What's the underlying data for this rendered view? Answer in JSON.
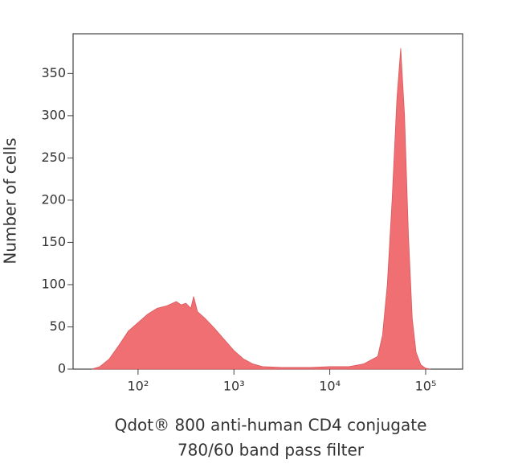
{
  "chart_data": {
    "type": "area",
    "y_label": "Number of cells",
    "x_label": [
      "Qdot® 800 anti-human CD4 conjugate",
      "780/60 band pass filter"
    ],
    "xscale": "log",
    "xlim": [
      21,
      243000
    ],
    "ylim": [
      0,
      397
    ],
    "xticks": [
      {
        "value": 100,
        "label": "10²"
      },
      {
        "value": 1000,
        "label": "10³"
      },
      {
        "value": 10000,
        "label": "10⁴"
      },
      {
        "value": 100000,
        "label": "10⁵"
      }
    ],
    "yticks": [
      0,
      50,
      100,
      150,
      200,
      250,
      300,
      350
    ],
    "color": "#ef6f73",
    "x": [
      33,
      40,
      50,
      63,
      79,
      100,
      126,
      158,
      200,
      251,
      282,
      316,
      355,
      380,
      417,
      501,
      631,
      794,
      1000,
      1259,
      1585,
      1995,
      3162,
      6310,
      10000,
      15849,
      22387,
      31623,
      35481,
      39811,
      44668,
      50119,
      54954,
      60256,
      66069,
      72444,
      79433,
      89125,
      100000,
      112202
    ],
    "values": [
      0,
      3,
      12,
      28,
      45,
      55,
      65,
      72,
      75,
      80,
      76,
      78,
      72,
      86,
      68,
      60,
      48,
      35,
      22,
      12,
      6,
      3,
      2,
      2,
      3,
      3,
      6,
      15,
      40,
      100,
      200,
      320,
      380,
      300,
      160,
      60,
      20,
      5,
      1,
      0
    ]
  }
}
